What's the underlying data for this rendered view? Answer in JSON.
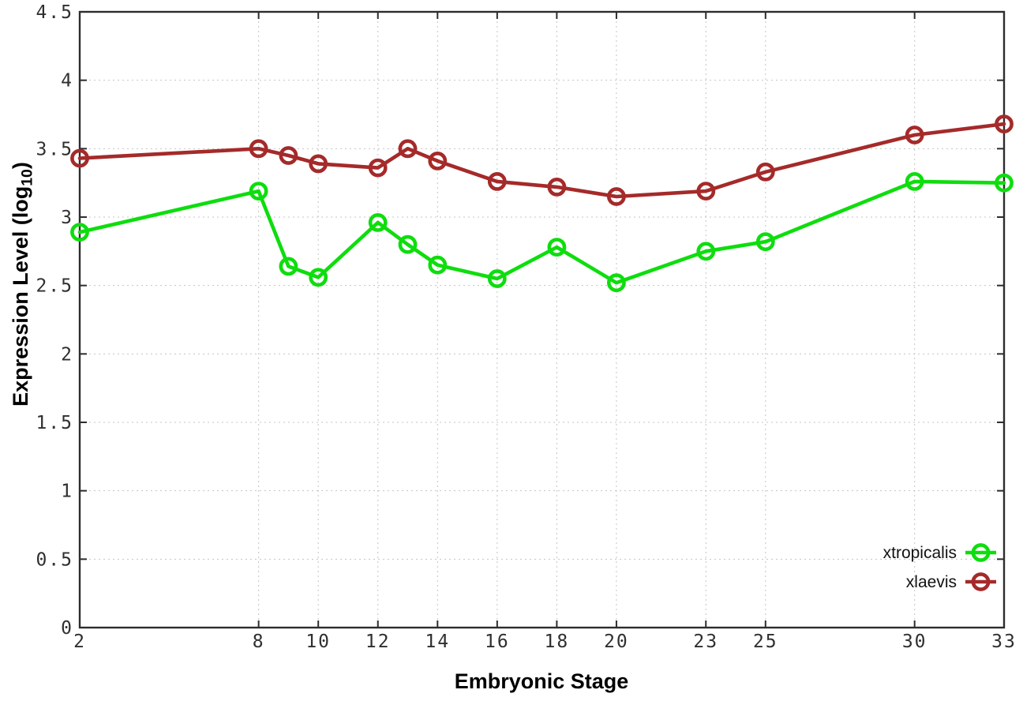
{
  "page": {
    "background": "#ffffff"
  },
  "chart_data": {
    "type": "line",
    "title": "",
    "xlabel": "Embryonic Stage",
    "ylabel": "Expression Level (log10)",
    "ylabel_parts": {
      "main": "Expression Level (log",
      "sub": "10",
      "end": ")"
    },
    "x": [
      2,
      8,
      9,
      10,
      12,
      13,
      14,
      16,
      18,
      20,
      23,
      25,
      30,
      33
    ],
    "series": [
      {
        "name": "xtropicalis",
        "color": "#0edd0e",
        "marker": "open-circle",
        "values": [
          2.89,
          3.19,
          2.64,
          2.56,
          2.96,
          2.8,
          2.65,
          2.55,
          2.78,
          2.52,
          2.75,
          2.82,
          3.26,
          3.25
        ]
      },
      {
        "name": "xlaevis",
        "color": "#a52a2a",
        "marker": "open-circle",
        "values": [
          3.43,
          3.5,
          3.45,
          3.39,
          3.36,
          3.5,
          3.41,
          3.26,
          3.22,
          3.15,
          3.19,
          3.33,
          3.6,
          3.68
        ]
      }
    ],
    "xticks": {
      "values": [
        2,
        8,
        10,
        12,
        14,
        16,
        18,
        20,
        23,
        25,
        30,
        33
      ],
      "labels": [
        "2",
        "8",
        "10",
        "12",
        "14",
        "16",
        "18",
        "20",
        "23",
        "25",
        "30",
        "33"
      ]
    },
    "yticks": {
      "values": [
        0,
        0.5,
        1,
        1.5,
        2,
        2.5,
        3,
        3.5,
        4,
        4.5
      ],
      "labels": [
        "0",
        "0.5",
        "1",
        "1.5",
        "2",
        "2.5",
        "3",
        "3.5",
        "4",
        "4.5"
      ]
    },
    "xlim": [
      2,
      33
    ],
    "ylim": [
      0,
      4.5
    ],
    "grid": true,
    "legend": {
      "position": "bottom-right-inside",
      "entries": [
        "xtropicalis",
        "xlaevis"
      ]
    },
    "colors": {
      "grid": "#c4c4c4",
      "border": "#2d2d2d",
      "tick_text": "#2f2f2f",
      "axis_label_text": "#000000",
      "legend_text": "#111111"
    }
  }
}
